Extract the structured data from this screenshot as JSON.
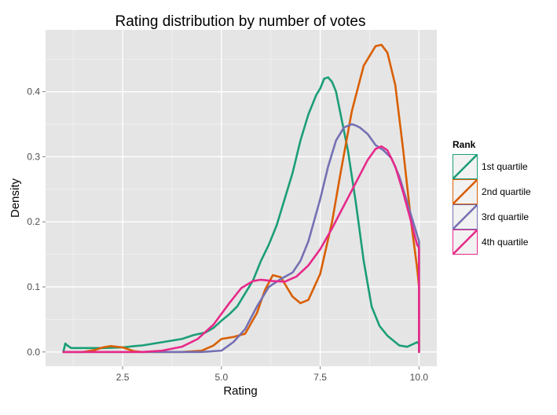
{
  "chart_data": {
    "type": "line",
    "title": "Rating distribution by number of votes",
    "xlabel": "Rating",
    "ylabel": "Density",
    "xlim": [
      0.55,
      10.45
    ],
    "ylim": [
      -0.022,
      0.495
    ],
    "x_ticks": [
      2.5,
      5.0,
      7.5,
      10.0
    ],
    "x_tick_labels": [
      "2.5",
      "5.0",
      "7.5",
      "10.0"
    ],
    "y_ticks": [
      0.0,
      0.1,
      0.2,
      0.3,
      0.4
    ],
    "y_tick_labels": [
      "0.0",
      "0.1",
      "0.2",
      "0.3",
      "0.4"
    ],
    "grid": true,
    "legend": {
      "title": "Rank",
      "position": "right"
    },
    "series": [
      {
        "name": "1st quartile",
        "color": "#1B9E77",
        "x": [
          1.0,
          1.05,
          1.1,
          1.2,
          1.3,
          1.5,
          2.0,
          2.5,
          2.8,
          3.0,
          3.5,
          4.0,
          4.3,
          4.6,
          4.8,
          5.0,
          5.2,
          5.4,
          5.6,
          5.8,
          6.0,
          6.2,
          6.4,
          6.6,
          6.8,
          7.0,
          7.2,
          7.4,
          7.5,
          7.6,
          7.7,
          7.8,
          7.9,
          8.0,
          8.2,
          8.4,
          8.6,
          8.8,
          9.0,
          9.2,
          9.5,
          9.7,
          9.85,
          9.95,
          10.0,
          10.0
        ],
        "y": [
          0.0,
          0.013,
          0.01,
          0.006,
          0.006,
          0.006,
          0.006,
          0.007,
          0.009,
          0.01,
          0.015,
          0.02,
          0.026,
          0.03,
          0.037,
          0.048,
          0.058,
          0.07,
          0.09,
          0.11,
          0.14,
          0.165,
          0.195,
          0.235,
          0.275,
          0.325,
          0.365,
          0.395,
          0.405,
          0.42,
          0.422,
          0.415,
          0.4,
          0.37,
          0.31,
          0.23,
          0.14,
          0.07,
          0.04,
          0.025,
          0.01,
          0.008,
          0.012,
          0.015,
          0.012,
          0.0
        ]
      },
      {
        "name": "2nd quartile",
        "color": "#D95F02",
        "x": [
          1.0,
          1.5,
          1.8,
          2.0,
          2.2,
          2.5,
          2.8,
          3.0,
          3.5,
          4.0,
          4.5,
          4.8,
          5.0,
          5.3,
          5.6,
          5.9,
          6.1,
          6.3,
          6.5,
          6.6,
          6.8,
          7.0,
          7.2,
          7.5,
          7.8,
          8.0,
          8.3,
          8.6,
          8.9,
          9.05,
          9.2,
          9.4,
          9.6,
          9.8,
          9.95,
          10.0,
          10.0
        ],
        "y": [
          0.0,
          0.0,
          0.003,
          0.007,
          0.009,
          0.007,
          0.001,
          0.0,
          0.0,
          0.0,
          0.002,
          0.01,
          0.02,
          0.023,
          0.028,
          0.06,
          0.095,
          0.118,
          0.115,
          0.105,
          0.085,
          0.075,
          0.08,
          0.12,
          0.2,
          0.27,
          0.37,
          0.44,
          0.47,
          0.472,
          0.46,
          0.41,
          0.31,
          0.2,
          0.13,
          0.1,
          0.0
        ]
      },
      {
        "name": "3rd quartile",
        "color": "#7570B3",
        "x": [
          1.0,
          2.0,
          3.0,
          4.0,
          4.5,
          5.0,
          5.3,
          5.6,
          5.9,
          6.2,
          6.5,
          6.8,
          7.0,
          7.2,
          7.5,
          7.7,
          7.9,
          8.1,
          8.3,
          8.4,
          8.5,
          8.7,
          8.9,
          9.1,
          9.3,
          9.5,
          9.7,
          9.85,
          10.0,
          10.0
        ],
        "y": [
          0.0,
          0.0,
          0.0,
          0.0,
          0.0,
          0.002,
          0.015,
          0.035,
          0.07,
          0.1,
          0.112,
          0.122,
          0.14,
          0.17,
          0.235,
          0.285,
          0.325,
          0.345,
          0.35,
          0.348,
          0.345,
          0.335,
          0.318,
          0.31,
          0.298,
          0.27,
          0.23,
          0.2,
          0.17,
          0.0
        ]
      },
      {
        "name": "4th quartile",
        "color": "#E7298A",
        "x": [
          1.0,
          2.0,
          3.0,
          3.5,
          4.0,
          4.4,
          4.8,
          5.2,
          5.5,
          5.8,
          6.0,
          6.3,
          6.6,
          6.9,
          7.2,
          7.5,
          7.8,
          8.1,
          8.4,
          8.7,
          8.9,
          9.05,
          9.2,
          9.4,
          9.6,
          9.8,
          9.95,
          10.0,
          10.0
        ],
        "y": [
          0.0,
          0.0,
          0.0,
          0.002,
          0.008,
          0.02,
          0.042,
          0.075,
          0.098,
          0.109,
          0.111,
          0.109,
          0.108,
          0.116,
          0.133,
          0.158,
          0.19,
          0.225,
          0.26,
          0.295,
          0.312,
          0.316,
          0.31,
          0.285,
          0.245,
          0.2,
          0.165,
          0.16,
          0.0
        ]
      }
    ]
  }
}
